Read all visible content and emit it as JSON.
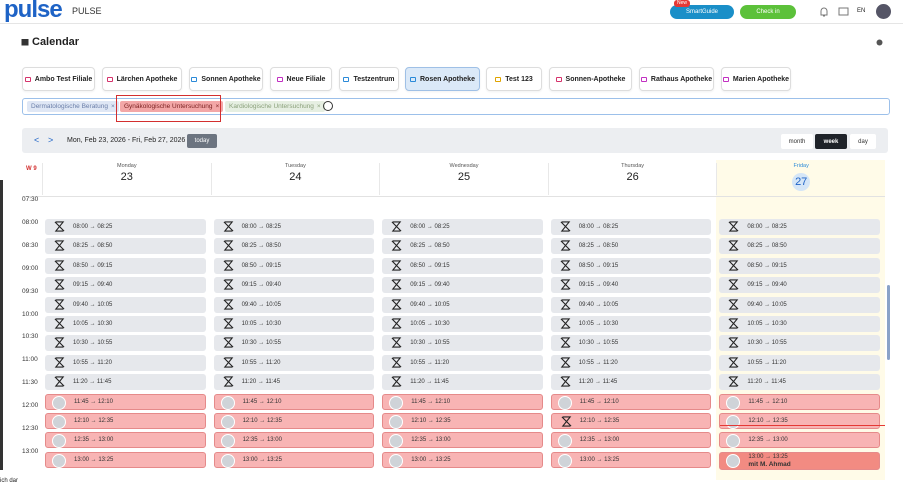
{
  "header": {
    "logo": "pulse",
    "product": "PULSE",
    "badge": "New",
    "smartguide": "SmartGuide",
    "checkin": "Check in",
    "lang": "EN"
  },
  "page_title": "Calendar",
  "locations": [
    "Ambo Test Filiale",
    "Lärchen Apotheke",
    "Sonnen Apotheke",
    "Neue Filiale",
    "Testzentrum",
    "Rosen Apotheke",
    "Test 123",
    "Sonnen-Apotheke",
    "Rathaus Apotheke",
    "Marien Apotheke"
  ],
  "filters": [
    "Dermatologische Beratung",
    "Gynäkologische Untersuchung",
    "Kardiologische Untersuchung"
  ],
  "filter_remove": "×",
  "nav": {
    "prev": "<",
    "next": ">",
    "range": "Mon, Feb 23, 2026 - Fri, Feb 27, 2026",
    "today": "today",
    "views": [
      "month",
      "week",
      "day"
    ]
  },
  "week": "W 9",
  "days": [
    {
      "name": "Monday",
      "date": "23"
    },
    {
      "name": "Tuesday",
      "date": "24"
    },
    {
      "name": "Wednesday",
      "date": "25"
    },
    {
      "name": "Thursday",
      "date": "26"
    },
    {
      "name": "Friday",
      "date": "27"
    }
  ],
  "times": [
    "07:30",
    "08:00",
    "08:30",
    "09:00",
    "09:30",
    "10:00",
    "10:30",
    "11:00",
    "11:30",
    "12:00",
    "12:30",
    "13:00"
  ],
  "slots": [
    "08:00 → 08:25",
    "08:25 → 08:50",
    "08:50 → 09:15",
    "09:15 → 09:40",
    "09:40 → 10:05",
    "10:05 → 10:30",
    "10:30 → 10:55",
    "10:55 → 11:20",
    "11:20 → 11:45",
    "11:45 → 12:10",
    "12:10 → 12:35",
    "12:35 → 13:00",
    "13:00 → 13:25"
  ],
  "booked_note": "mit M. Ahmad",
  "footer_fragment": "ich dar"
}
